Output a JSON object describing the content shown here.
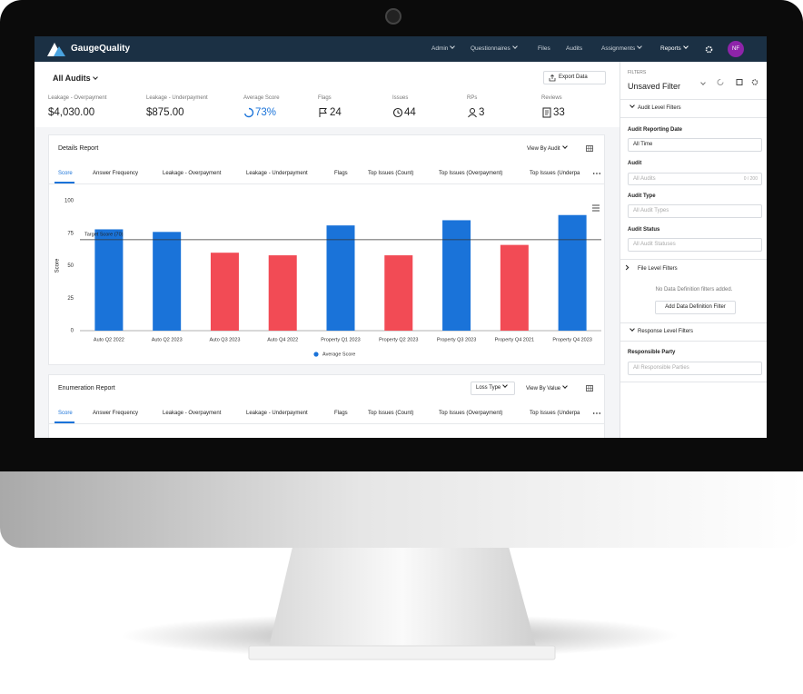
{
  "nav": {
    "brand": "GaugeQuality",
    "items": [
      "Admin",
      "Questionnaires",
      "Files",
      "Audits",
      "Assignments",
      "Reports"
    ],
    "avatar": "NF"
  },
  "header": {
    "title": "All Audits",
    "export": "Export Data"
  },
  "stats": [
    {
      "label": "Leakage - Overpayment",
      "value": "$4,030.00"
    },
    {
      "label": "Leakage - Underpayment",
      "value": "$875.00"
    },
    {
      "label": "Average Score",
      "value": "73%"
    },
    {
      "label": "Flags",
      "value": "24"
    },
    {
      "label": "Issues",
      "value": "44"
    },
    {
      "label": "RPs",
      "value": "3"
    },
    {
      "label": "Reviews",
      "value": "33"
    }
  ],
  "details_report": {
    "title": "Details Report",
    "view": "View By Audit",
    "tabs": [
      "Score",
      "Answer Frequency",
      "Leakage - Overpayment",
      "Leakage - Underpayment",
      "Flags",
      "Top Issues (Count)",
      "Top Issues (Overpayment)",
      "Top Issues (Underpa"
    ]
  },
  "chart_data": {
    "type": "bar",
    "ylabel": "Score",
    "categories": [
      "Auto Q2 2022",
      "Auto Q2 2023",
      "Auto Q3 2023",
      "Auto Q4 2022",
      "Property Q1 2023",
      "Property Q2 2023",
      "Property Q3 2023",
      "Property Q4 2021",
      "Property Q4 2023"
    ],
    "series": [
      {
        "name": "Average Score",
        "color": "#1a73d9",
        "values": [
          78,
          76,
          60,
          58,
          81,
          58,
          85,
          66,
          89
        ],
        "colors": [
          "#1a73d9",
          "#1a73d9",
          "#f24b55",
          "#f24b55",
          "#1a73d9",
          "#f24b55",
          "#1a73d9",
          "#f24b55",
          "#1a73d9"
        ]
      }
    ],
    "ylim": [
      0,
      100
    ],
    "yticks": [
      0,
      25,
      50,
      75,
      100
    ],
    "target": {
      "value": 70,
      "label": "Target Score (70)"
    },
    "legend": "bottom"
  },
  "enumeration_report": {
    "title": "Enumeration Report",
    "loss_type": "Loss Type",
    "view": "View By Value",
    "tabs": [
      "Score",
      "Answer Frequency",
      "Leakage - Overpayment",
      "Leakage - Underpayment",
      "Flags",
      "Top Issues (Count)",
      "Top Issues (Overpayment)",
      "Top Issues (Underpa"
    ]
  },
  "filters": {
    "heading": "FILTERS",
    "name": "Unsaved Filter",
    "audit_level": {
      "title": "Audit Level Filters",
      "fields": [
        {
          "label": "Audit Reporting Date",
          "value": "All Time"
        },
        {
          "label": "Audit",
          "placeholder": "All Audits",
          "count": "0 / 200"
        },
        {
          "label": "Audit Type",
          "placeholder": "All Audit Types"
        },
        {
          "label": "Audit Status",
          "placeholder": "All Audit Statuses"
        }
      ]
    },
    "file_level": {
      "title": "File Level Filters",
      "empty": "No Data Definition filters added.",
      "button": "Add Data Definition Filter"
    },
    "response_level": {
      "title": "Response Level Filters"
    },
    "responsible_party": {
      "label": "Responsible Party",
      "placeholder": "All Responsible Parties"
    }
  }
}
